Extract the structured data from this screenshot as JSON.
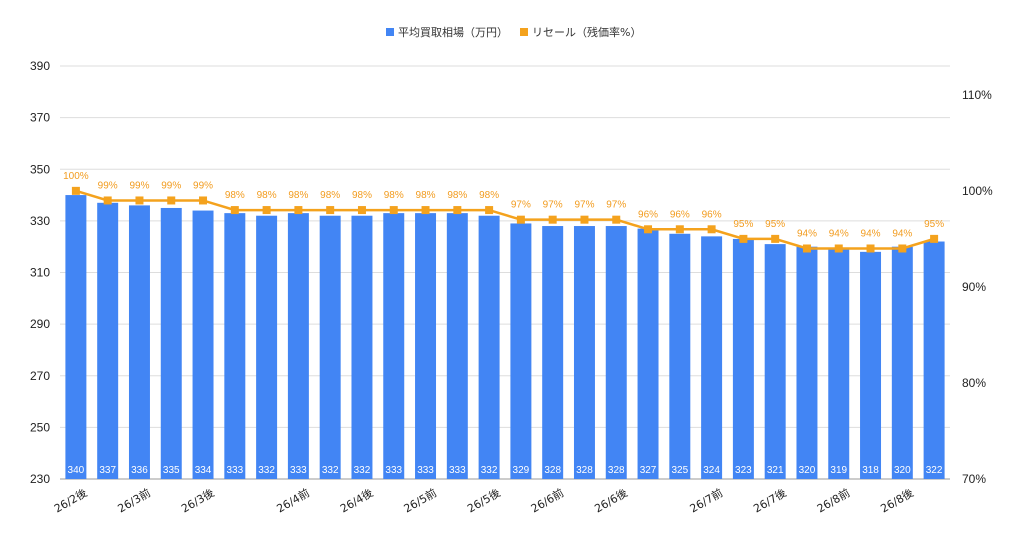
{
  "chart_data": {
    "type": "bar+line",
    "legend": [
      {
        "name": "平均買取相場（万円）",
        "color": "#4285f4",
        "marker": "square"
      },
      {
        "name": "リセール（残価率%）",
        "color": "#f4a21d",
        "marker": "square"
      }
    ],
    "legend_position": "top-center",
    "x_ticks": [
      "26/2後",
      "26/3前",
      "26/3後",
      "26/4前",
      "26/4後",
      "26/5前",
      "26/5後",
      "26/6前",
      "26/6後",
      "26/7前",
      "26/7後",
      "26/8前",
      "26/8後"
    ],
    "x_tick_positions": [
      0,
      2,
      4,
      7,
      9,
      11,
      13,
      15,
      17,
      20,
      22,
      24,
      26
    ],
    "series": [
      {
        "name": "平均買取相場（万円）",
        "type": "bar",
        "axis": "left",
        "color": "#4285f4",
        "values": [
          340,
          337,
          336,
          335,
          334,
          333,
          332,
          333,
          332,
          332,
          333,
          333,
          333,
          332,
          329,
          328,
          328,
          328,
          327,
          325,
          324,
          323,
          321,
          320,
          319,
          318,
          320,
          322
        ],
        "data_labels": [
          "340",
          "337",
          "336",
          "335",
          "334",
          "333",
          "332",
          "333",
          "332",
          "332",
          "333",
          "333",
          "333",
          "332",
          "329",
          "328",
          "328",
          "328",
          "327",
          "325",
          "324",
          "323",
          "321",
          "320",
          "319",
          "318",
          "320",
          "322"
        ]
      },
      {
        "name": "リセール（残価率%）",
        "type": "line",
        "axis": "right",
        "color": "#f4a21d",
        "values": [
          100,
          99,
          99,
          99,
          99,
          98,
          98,
          98,
          98,
          98,
          98,
          98,
          98,
          98,
          97,
          97,
          97,
          97,
          96,
          96,
          96,
          95,
          95,
          94,
          94,
          94,
          94,
          95
        ],
        "data_labels": [
          "100%",
          "99%",
          "99%",
          "99%",
          "99%",
          "98%",
          "98%",
          "98%",
          "98%",
          "98%",
          "98%",
          "98%",
          "98%",
          "98%",
          "97%",
          "97%",
          "97%",
          "97%",
          "96%",
          "96%",
          "96%",
          "95%",
          "95%",
          "94%",
          "94%",
          "94%",
          "94%",
          "95%"
        ]
      }
    ],
    "y_left": {
      "range": [
        230,
        390
      ],
      "ticks": [
        "230",
        "250",
        "270",
        "290",
        "310",
        "330",
        "350",
        "370",
        "390"
      ]
    },
    "y_right": {
      "range": [
        70,
        113
      ],
      "ticks": [
        "70%",
        "80%",
        "90%",
        "100%",
        "110%"
      ],
      "tick_values": [
        70,
        80,
        90,
        100,
        110
      ]
    },
    "grid": true
  }
}
